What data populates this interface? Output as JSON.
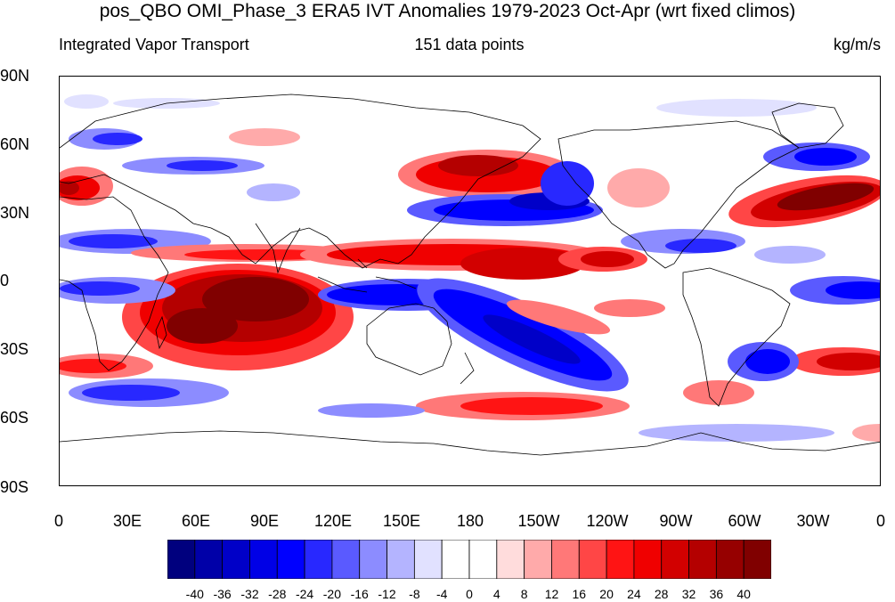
{
  "title": "pos_QBO OMI_Phase_3 ERA5 IVT Anomalies 1979-2023 Oct-Apr (wrt fixed climos)",
  "left_string": "Integrated Vapor Transport",
  "center_string": "151 data points",
  "right_string": "kg/m/s",
  "lat_labels": [
    "90N",
    "60N",
    "30N",
    "0",
    "30S",
    "60S",
    "90S"
  ],
  "lon_labels": [
    "0",
    "30E",
    "60E",
    "90E",
    "120E",
    "150E",
    "180",
    "150W",
    "120W",
    "90W",
    "60W",
    "30W",
    "0"
  ],
  "colorbar": {
    "levels": [
      "-40",
      "-36",
      "-32",
      "-28",
      "-24",
      "-20",
      "-16",
      "-12",
      "-8",
      "-4",
      "0",
      "4",
      "8",
      "12",
      "16",
      "20",
      "24",
      "28",
      "32",
      "36",
      "40"
    ],
    "colors": [
      "#00007e",
      "#0000a8",
      "#0000c8",
      "#0000e6",
      "#0000ff",
      "#2828ff",
      "#5a5aff",
      "#8c8cff",
      "#b4b4ff",
      "#e1e1ff",
      "#ffffff",
      "#ffffff",
      "#ffdcdc",
      "#ffaaaa",
      "#ff7878",
      "#ff4646",
      "#ff1414",
      "#f00000",
      "#d20000",
      "#b40000",
      "#960000",
      "#800000"
    ]
  },
  "colors": {
    "ocean": "#ffffff",
    "coast": "#000000"
  }
}
